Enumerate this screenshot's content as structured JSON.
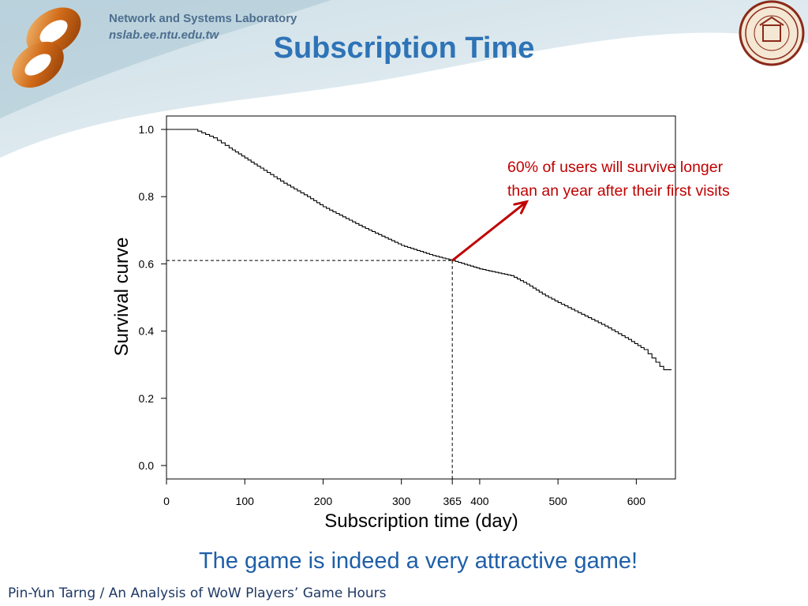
{
  "header": {
    "lab_name": "Network and Systems Laboratory",
    "lab_url": "nslab.ee.ntu.edu.tw"
  },
  "title": "Subscription Time",
  "annotation": {
    "line1": "60% of users will survive longer",
    "line2": "than an year after their first visits"
  },
  "tagline": "The game is indeed a very attractive game!",
  "footer": "Pin-Yun Tarng / An Analysis of WoW Players’ Game Hours",
  "colors": {
    "title": "#2e73b6",
    "annotation": "#c00000",
    "tagline": "#1f5fa8"
  },
  "chart_data": {
    "type": "line",
    "xlabel": "Subscription time (day)",
    "ylabel": "Survival curve",
    "xlim": [
      0,
      650
    ],
    "ylim": [
      -0.04,
      1.04
    ],
    "xticks": [
      0,
      100,
      200,
      300,
      365,
      400,
      500,
      600
    ],
    "xtick_labels": [
      "0",
      "100",
      "200",
      "300",
      "365",
      "400",
      "500",
      "600"
    ],
    "yticks": [
      0.0,
      0.2,
      0.4,
      0.6,
      0.8,
      1.0
    ],
    "ytick_labels": [
      "0.0",
      "0.2",
      "0.4",
      "0.6",
      "0.8",
      "1.0"
    ],
    "grid": false,
    "series": [
      {
        "x": [
          0,
          35,
          40,
          50,
          60,
          70,
          80,
          100,
          120,
          150,
          180,
          200,
          250,
          300,
          340,
          365,
          400,
          440,
          460,
          480,
          500,
          530,
          560,
          590,
          610,
          620,
          630,
          635,
          645
        ],
        "y": [
          1.0,
          1.0,
          0.995,
          0.985,
          0.975,
          0.96,
          0.945,
          0.915,
          0.885,
          0.84,
          0.8,
          0.77,
          0.71,
          0.655,
          0.625,
          0.61,
          0.585,
          0.565,
          0.54,
          0.51,
          0.485,
          0.45,
          0.415,
          0.375,
          0.345,
          0.32,
          0.295,
          0.285,
          0.285
        ]
      }
    ],
    "reference": {
      "x": 365,
      "y": 0.61
    },
    "arrow": {
      "from": [
        365,
        0.61
      ],
      "to": [
        460,
        0.785
      ]
    }
  }
}
